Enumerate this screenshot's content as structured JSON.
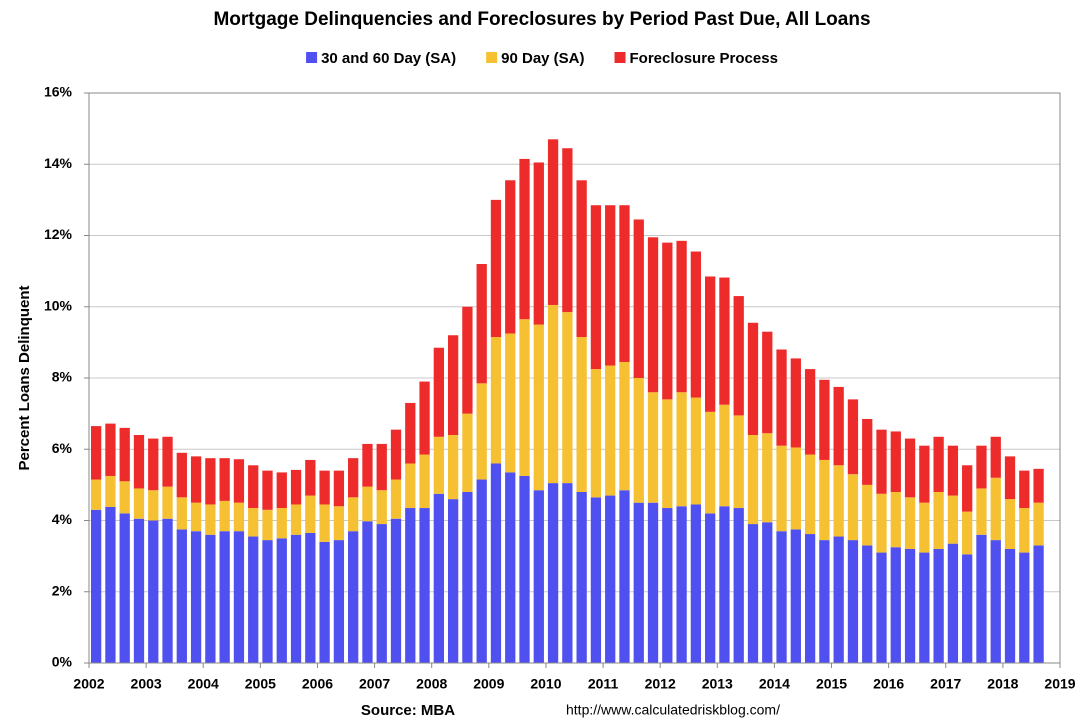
{
  "chart_data": {
    "type": "stacked-bar",
    "title": "Mortgage Delinquencies and Foreclosures by Period Past Due, All Loans",
    "y_label": "Percent Loans Delinquent",
    "source": "Source: MBA",
    "url": "http://www.calculatedriskblog.com/",
    "x": [
      2002,
      2002.25,
      2002.5,
      2002.75,
      2003,
      2003.25,
      2003.5,
      2003.75,
      2004,
      2004.25,
      2004.5,
      2004.75,
      2005,
      2005.25,
      2005.5,
      2005.75,
      2006,
      2006.25,
      2006.5,
      2006.75,
      2007,
      2007.25,
      2007.5,
      2007.75,
      2008,
      2008.25,
      2008.5,
      2008.75,
      2009,
      2009.25,
      2009.5,
      2009.75,
      2010,
      2010.25,
      2010.5,
      2010.75,
      2011,
      2011.25,
      2011.5,
      2011.75,
      2012,
      2012.25,
      2012.5,
      2012.75,
      2013,
      2013.25,
      2013.5,
      2013.75,
      2014,
      2014.25,
      2014.5,
      2014.75,
      2015,
      2015.25,
      2015.5,
      2015.75,
      2016,
      2016.25,
      2016.5,
      2016.75,
      2017,
      2017.25,
      2017.5,
      2017.75,
      2018,
      2018.25,
      2018.5
    ],
    "series": [
      {
        "name": "30 and 60 Day (SA)",
        "color": "#5050f0",
        "values": [
          4.3,
          4.38,
          4.2,
          4.05,
          4.0,
          4.05,
          3.75,
          3.7,
          3.6,
          3.7,
          3.7,
          3.55,
          3.45,
          3.5,
          3.6,
          3.65,
          3.4,
          3.45,
          3.7,
          3.98,
          3.9,
          4.05,
          4.35,
          4.35,
          4.75,
          4.6,
          4.8,
          5.15,
          5.6,
          5.35,
          5.25,
          4.85,
          5.05,
          5.05,
          4.8,
          4.65,
          4.7,
          4.85,
          4.5,
          4.5,
          4.35,
          4.4,
          4.45,
          4.2,
          4.4,
          4.35,
          3.9,
          3.95,
          3.7,
          3.75,
          3.62,
          3.45,
          3.55,
          3.45,
          3.3,
          3.1,
          3.25,
          3.2,
          3.1,
          3.2,
          3.35,
          3.05,
          3.6,
          3.45,
          3.2,
          3.1,
          3.3
        ]
      },
      {
        "name": "90 Day (SA)",
        "color": "#f5c133",
        "values": [
          0.85,
          0.87,
          0.9,
          0.85,
          0.85,
          0.9,
          0.9,
          0.8,
          0.85,
          0.85,
          0.8,
          0.8,
          0.85,
          0.85,
          0.85,
          1.05,
          1.05,
          0.95,
          0.95,
          0.97,
          0.95,
          1.1,
          1.25,
          1.5,
          1.6,
          1.8,
          2.2,
          2.7,
          3.55,
          3.9,
          4.4,
          4.65,
          5.0,
          4.8,
          4.35,
          3.6,
          3.65,
          3.6,
          3.5,
          3.1,
          3.05,
          3.2,
          3.0,
          2.85,
          2.85,
          2.6,
          2.5,
          2.5,
          2.4,
          2.3,
          2.23,
          2.25,
          2.0,
          1.85,
          1.7,
          1.65,
          1.55,
          1.45,
          1.4,
          1.6,
          1.35,
          1.2,
          1.3,
          1.75,
          1.4,
          1.25,
          1.2
        ]
      },
      {
        "name": "Foreclosure Process",
        "color": "#ee2b2b",
        "values": [
          1.5,
          1.47,
          1.5,
          1.5,
          1.45,
          1.4,
          1.25,
          1.3,
          1.3,
          1.2,
          1.22,
          1.2,
          1.1,
          1.0,
          0.97,
          1.0,
          0.95,
          1.0,
          1.1,
          1.2,
          1.3,
          1.4,
          1.7,
          2.05,
          2.5,
          2.8,
          3.0,
          3.35,
          3.85,
          4.3,
          4.5,
          4.55,
          4.65,
          4.6,
          4.4,
          4.6,
          4.5,
          4.4,
          4.45,
          4.35,
          4.4,
          4.25,
          4.1,
          3.8,
          3.57,
          3.35,
          3.15,
          2.85,
          2.7,
          2.5,
          2.4,
          2.25,
          2.2,
          2.1,
          1.85,
          1.8,
          1.7,
          1.65,
          1.6,
          1.55,
          1.4,
          1.3,
          1.2,
          1.15,
          1.2,
          1.05,
          0.95
        ]
      }
    ],
    "xlim": [
      2002,
      2019
    ],
    "xticks": [
      2002,
      2003,
      2004,
      2005,
      2006,
      2007,
      2008,
      2009,
      2010,
      2011,
      2012,
      2013,
      2014,
      2015,
      2016,
      2017,
      2018,
      2019
    ],
    "ylim": [
      0,
      16
    ],
    "yticks": [
      {
        "value": 0,
        "label": "0%"
      },
      {
        "value": 2,
        "label": "2%"
      },
      {
        "value": 4,
        "label": "4%"
      },
      {
        "value": 6,
        "label": "6%"
      },
      {
        "value": 8,
        "label": "8%"
      },
      {
        "value": 10,
        "label": "10%"
      },
      {
        "value": 12,
        "label": "12%"
      },
      {
        "value": 14,
        "label": "14%"
      },
      {
        "value": 16,
        "label": "16%"
      }
    ],
    "grid": true,
    "legend": "top"
  }
}
